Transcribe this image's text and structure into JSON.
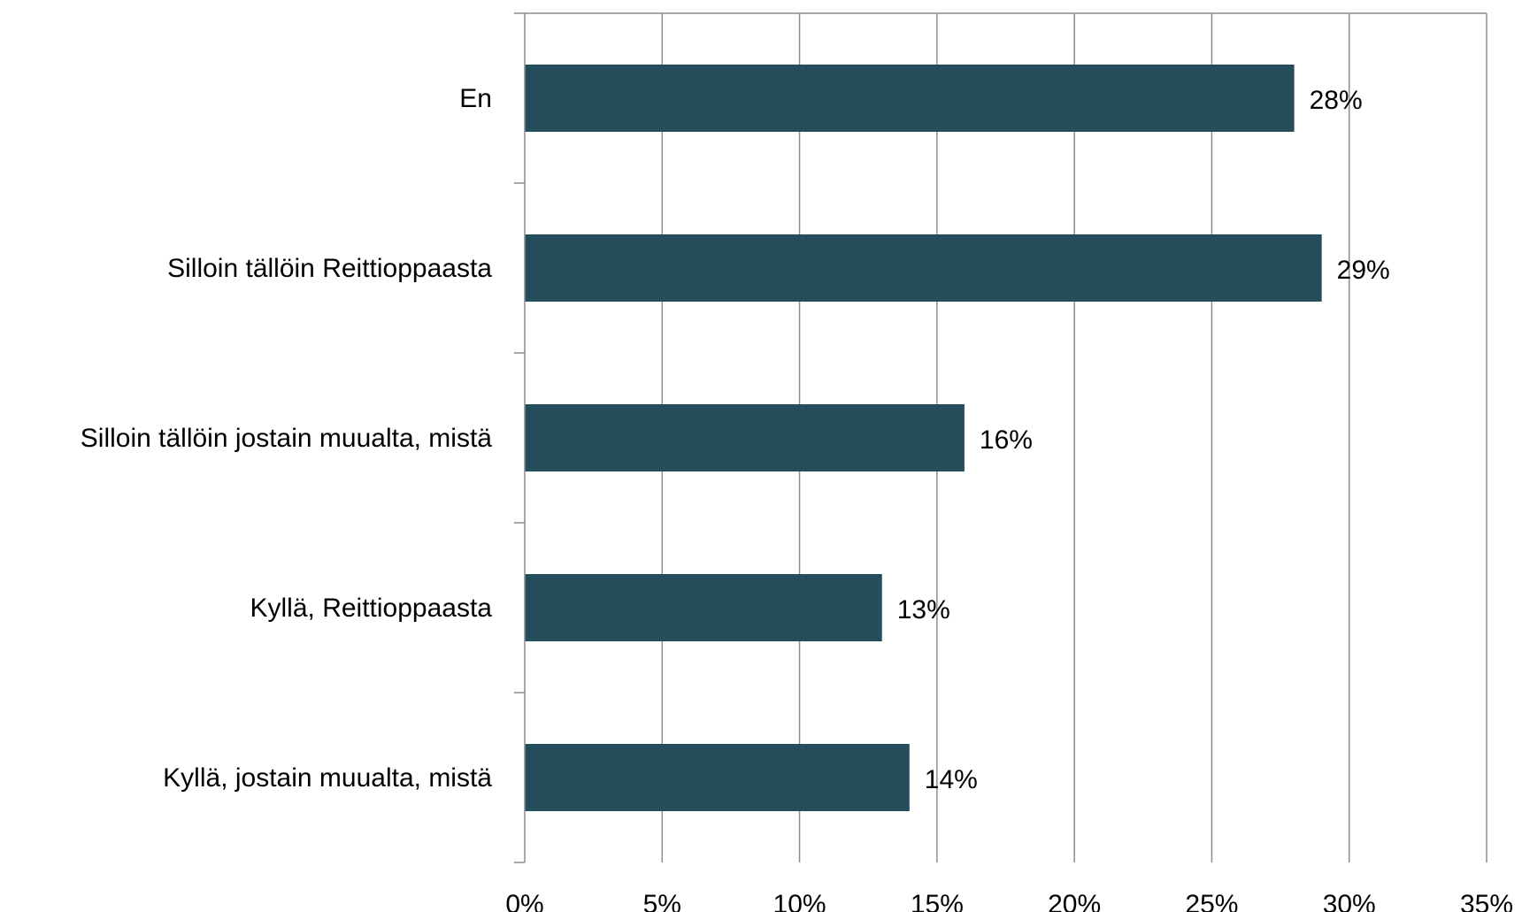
{
  "chart_data": {
    "type": "bar",
    "orientation": "horizontal",
    "categories": [
      "En",
      "Silloin tällöin Reittioppaasta",
      "Silloin tällöin jostain muualta, mistä",
      "Kyllä, Reittioppaasta",
      "Kyllä, jostain muualta, mistä"
    ],
    "values": [
      28,
      29,
      16,
      13,
      14
    ],
    "data_labels": [
      "28%",
      "29%",
      "16%",
      "13%",
      "14%"
    ],
    "x_ticks": [
      "0%",
      "5%",
      "10%",
      "15%",
      "20%",
      "25%",
      "30%",
      "35%"
    ],
    "xlim": [
      0,
      35
    ],
    "title": "",
    "xlabel": "",
    "ylabel": "",
    "grid": true,
    "legend": "none",
    "bar_color": "#244e5c"
  }
}
